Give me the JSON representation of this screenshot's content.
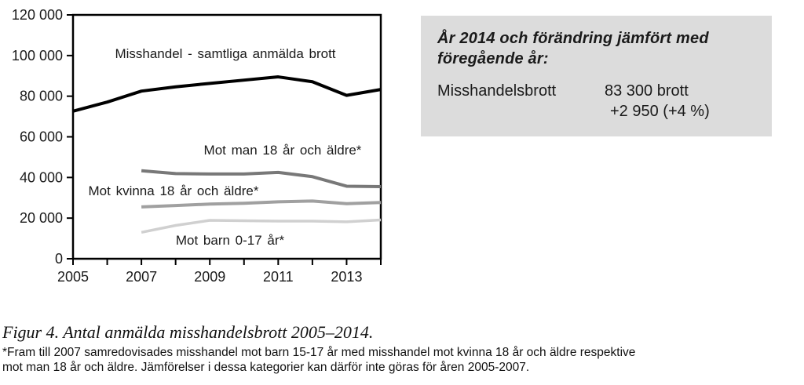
{
  "chart_data": {
    "type": "line",
    "x": [
      2005,
      2006,
      2007,
      2008,
      2009,
      2010,
      2011,
      2012,
      2013,
      2014
    ],
    "x_tick_labels": [
      "2005",
      "",
      "2007",
      "",
      "2009",
      "",
      "2011",
      "",
      "2013",
      ""
    ],
    "ylim": [
      0,
      120000
    ],
    "y_ticks": [
      0,
      20000,
      40000,
      60000,
      80000,
      100000,
      120000
    ],
    "y_tick_labels": [
      "0",
      "20 000",
      "40 000",
      "60 000",
      "80 000",
      "100 000",
      "120 000"
    ],
    "grid": false,
    "legend_position": "inline-labels",
    "series": [
      {
        "name": "Misshandel - samtliga anmälda brott",
        "color": "#000000",
        "stroke_width": 4,
        "values": [
          72600,
          77100,
          82500,
          84600,
          86300,
          87900,
          89500,
          87100,
          80400,
          83300
        ]
      },
      {
        "name": "Mot man 18 år och äldre*",
        "color": "#787878",
        "stroke_width": 4,
        "values": [
          null,
          null,
          43300,
          41900,
          41700,
          41700,
          42500,
          40400,
          35700,
          35500
        ]
      },
      {
        "name": "Mot kvinna 18 år och äldre*",
        "color": "#a0a0a0",
        "stroke_width": 4,
        "values": [
          null,
          null,
          25500,
          26200,
          26900,
          27300,
          28000,
          28400,
          27100,
          27700
        ]
      },
      {
        "name": "Mot barn 0-17 år*",
        "color": "#d0d0d0",
        "stroke_width": 3.5,
        "values": [
          null,
          null,
          13000,
          16400,
          18900,
          18700,
          18500,
          18500,
          18200,
          19100
        ]
      }
    ]
  },
  "info_box": {
    "background": "#dcdcdc",
    "heading": "År 2014 och förändring jämfört med föregående år:",
    "rows": [
      {
        "label": "Misshandelsbrott",
        "value": "83 300 brott",
        "change": "+2 950 (+4 %)"
      }
    ]
  },
  "caption": {
    "title": "Figur 4. Antal anmälda misshandelsbrott 2005–2014.",
    "footnote_lines": [
      "*Fram till 2007 samredovisades misshandel mot barn 15-17 år med misshandel mot kvinna 18 år och äldre respektive",
      "mot man 18 år och äldre. Jämförelser i dessa kategorier kan därför inte göras för åren 2005-2007."
    ]
  }
}
